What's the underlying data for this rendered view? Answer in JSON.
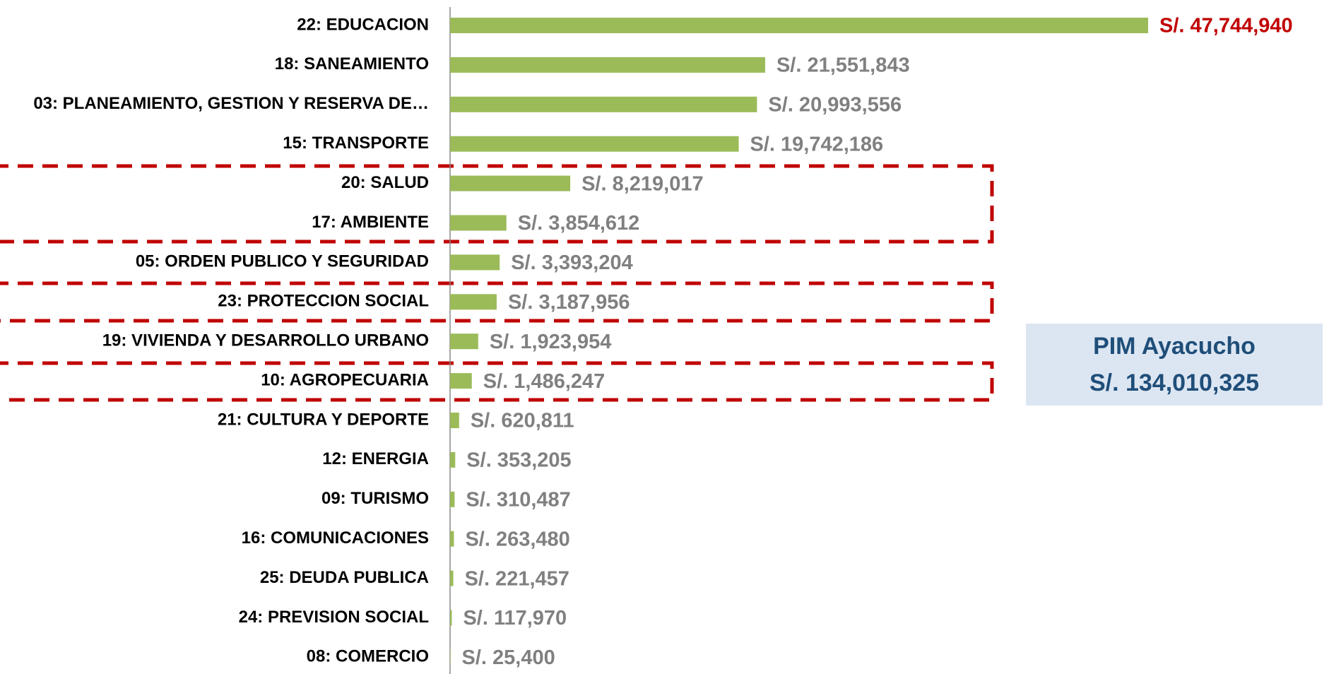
{
  "chart_data": {
    "type": "barh",
    "categories": [
      "22: EDUCACION",
      "18: SANEAMIENTO",
      "03: PLANEAMIENTO, GESTION Y RESERVA DE…",
      "15: TRANSPORTE",
      "20: SALUD",
      "17: AMBIENTE",
      "05: ORDEN PUBLICO Y SEGURIDAD",
      "23: PROTECCION SOCIAL",
      "19: VIVIENDA Y DESARROLLO URBANO",
      "10: AGROPECUARIA",
      "21: CULTURA Y DEPORTE",
      "12: ENERGIA",
      "09: TURISMO",
      "16: COMUNICACIONES",
      "25: DEUDA PUBLICA",
      "24: PREVISION SOCIAL",
      "08: COMERCIO"
    ],
    "values": [
      47744940,
      21551843,
      20993556,
      19742186,
      8219017,
      3854612,
      3393204,
      3187956,
      1923954,
      1486247,
      620811,
      353205,
      310487,
      263480,
      221457,
      117970,
      25400
    ],
    "value_labels": [
      "S/. 47,744,940",
      "S/. 21,551,843",
      "S/. 20,993,556",
      "S/. 19,742,186",
      "S/. 8,219,017",
      "S/. 3,854,612",
      "S/. 3,393,204",
      "S/. 3,187,956",
      "S/. 1,923,954",
      "S/. 1,486,247",
      "S/. 620,811",
      "S/. 353,205",
      "S/. 310,487",
      "S/. 263,480",
      "S/. 221,457",
      "S/. 117,970",
      "S/. 25,400"
    ],
    "label_colors": [
      "#c00000",
      "#808080",
      "#808080",
      "#808080",
      "#808080",
      "#808080",
      "#808080",
      "#808080",
      "#808080",
      "#808080",
      "#808080",
      "#808080",
      "#808080",
      "#808080",
      "#808080",
      "#808080",
      "#808080"
    ],
    "color": "#9bbb59",
    "annotation": {
      "title": "PIM Ayacucho",
      "total": "S/. 134,010,325"
    }
  }
}
